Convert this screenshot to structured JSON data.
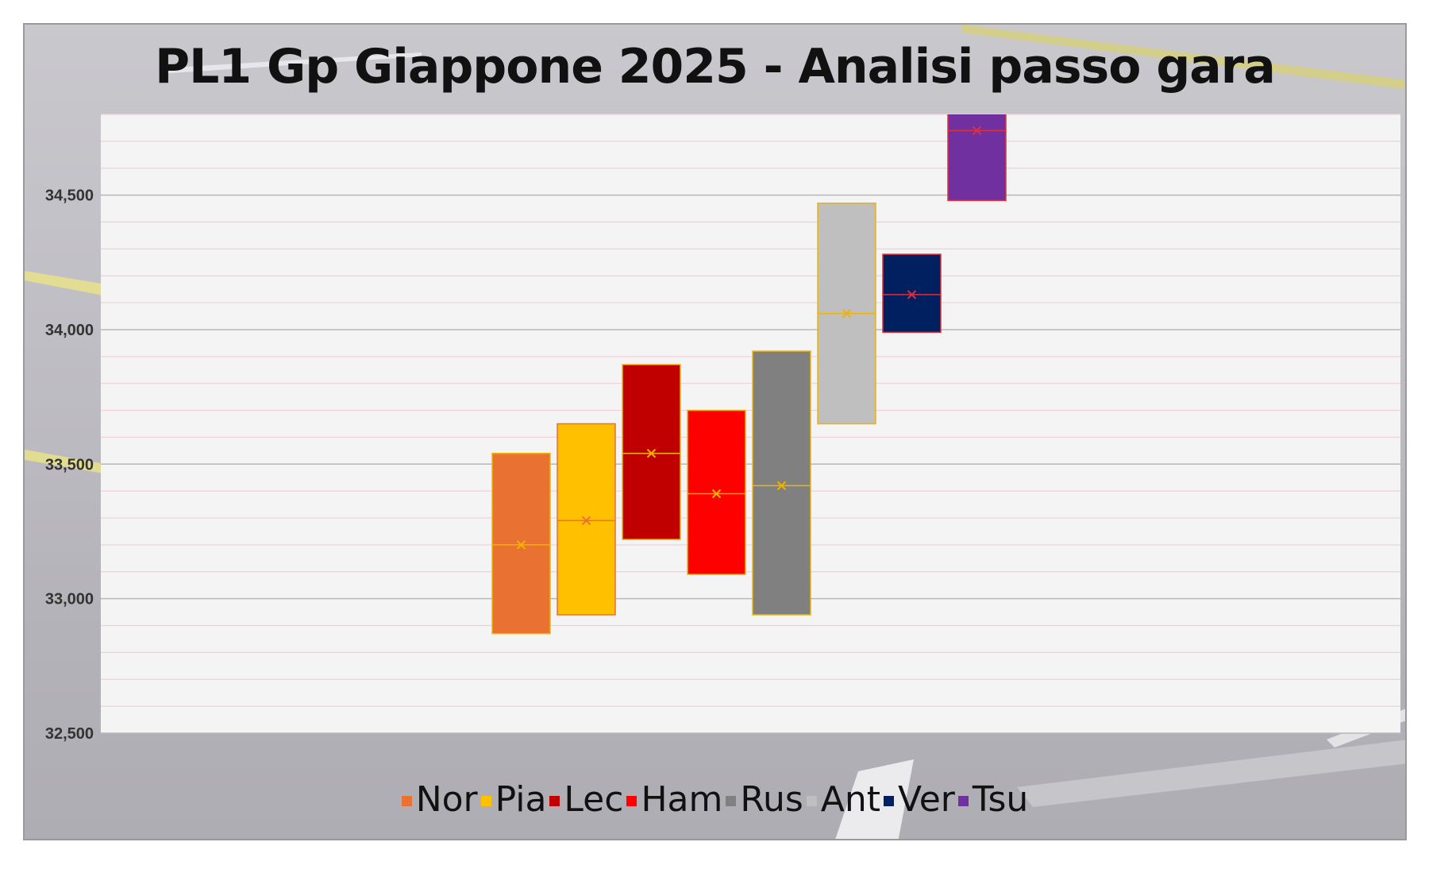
{
  "chart_data": {
    "type": "box",
    "title": "PL1 Gp Giappone 2025 - Analisi passo gara",
    "xlabel": "",
    "ylabel": "",
    "ylim": [
      32.5,
      34.8
    ],
    "yticks": [
      32.5,
      33.0,
      33.5,
      34.0,
      34.5
    ],
    "ytick_labels": [
      "32,500",
      "33,000",
      "33,500",
      "34,000",
      "34,500"
    ],
    "grid": true,
    "legend_position": "bottom",
    "series": [
      {
        "name": "Nor",
        "color": "#E97132",
        "marker_color": "#F0B400",
        "low": 32.87,
        "high": 33.54,
        "median": 33.2,
        "mean": 33.2
      },
      {
        "name": "Pia",
        "color": "#FFC000",
        "marker_color": "#E97132",
        "low": 32.94,
        "high": 33.65,
        "median": 33.29,
        "mean": 33.29
      },
      {
        "name": "Lec",
        "color": "#C00000",
        "marker_color": "#F0B400",
        "low": 33.22,
        "high": 33.87,
        "median": 33.54,
        "mean": 33.54
      },
      {
        "name": "Ham",
        "color": "#FF0000",
        "marker_color": "#F0B400",
        "low": 33.09,
        "high": 33.7,
        "median": 33.39,
        "mean": 33.39
      },
      {
        "name": "Rus",
        "color": "#808080",
        "marker_color": "#F0B400",
        "low": 32.94,
        "high": 33.92,
        "median": 33.42,
        "mean": 33.42
      },
      {
        "name": "Ant",
        "color": "#BFBFBF",
        "marker_color": "#F0B400",
        "low": 33.65,
        "high": 34.47,
        "median": 34.06,
        "mean": 34.06
      },
      {
        "name": "Ver",
        "color": "#002060",
        "marker_color": "#E0303C",
        "low": 33.99,
        "high": 34.28,
        "median": 34.13,
        "mean": 34.13
      },
      {
        "name": "Tsu",
        "color": "#7030A0",
        "marker_color": "#E0303C",
        "low": 34.48,
        "high": 34.82,
        "median": 34.74,
        "mean": 34.74
      }
    ]
  }
}
